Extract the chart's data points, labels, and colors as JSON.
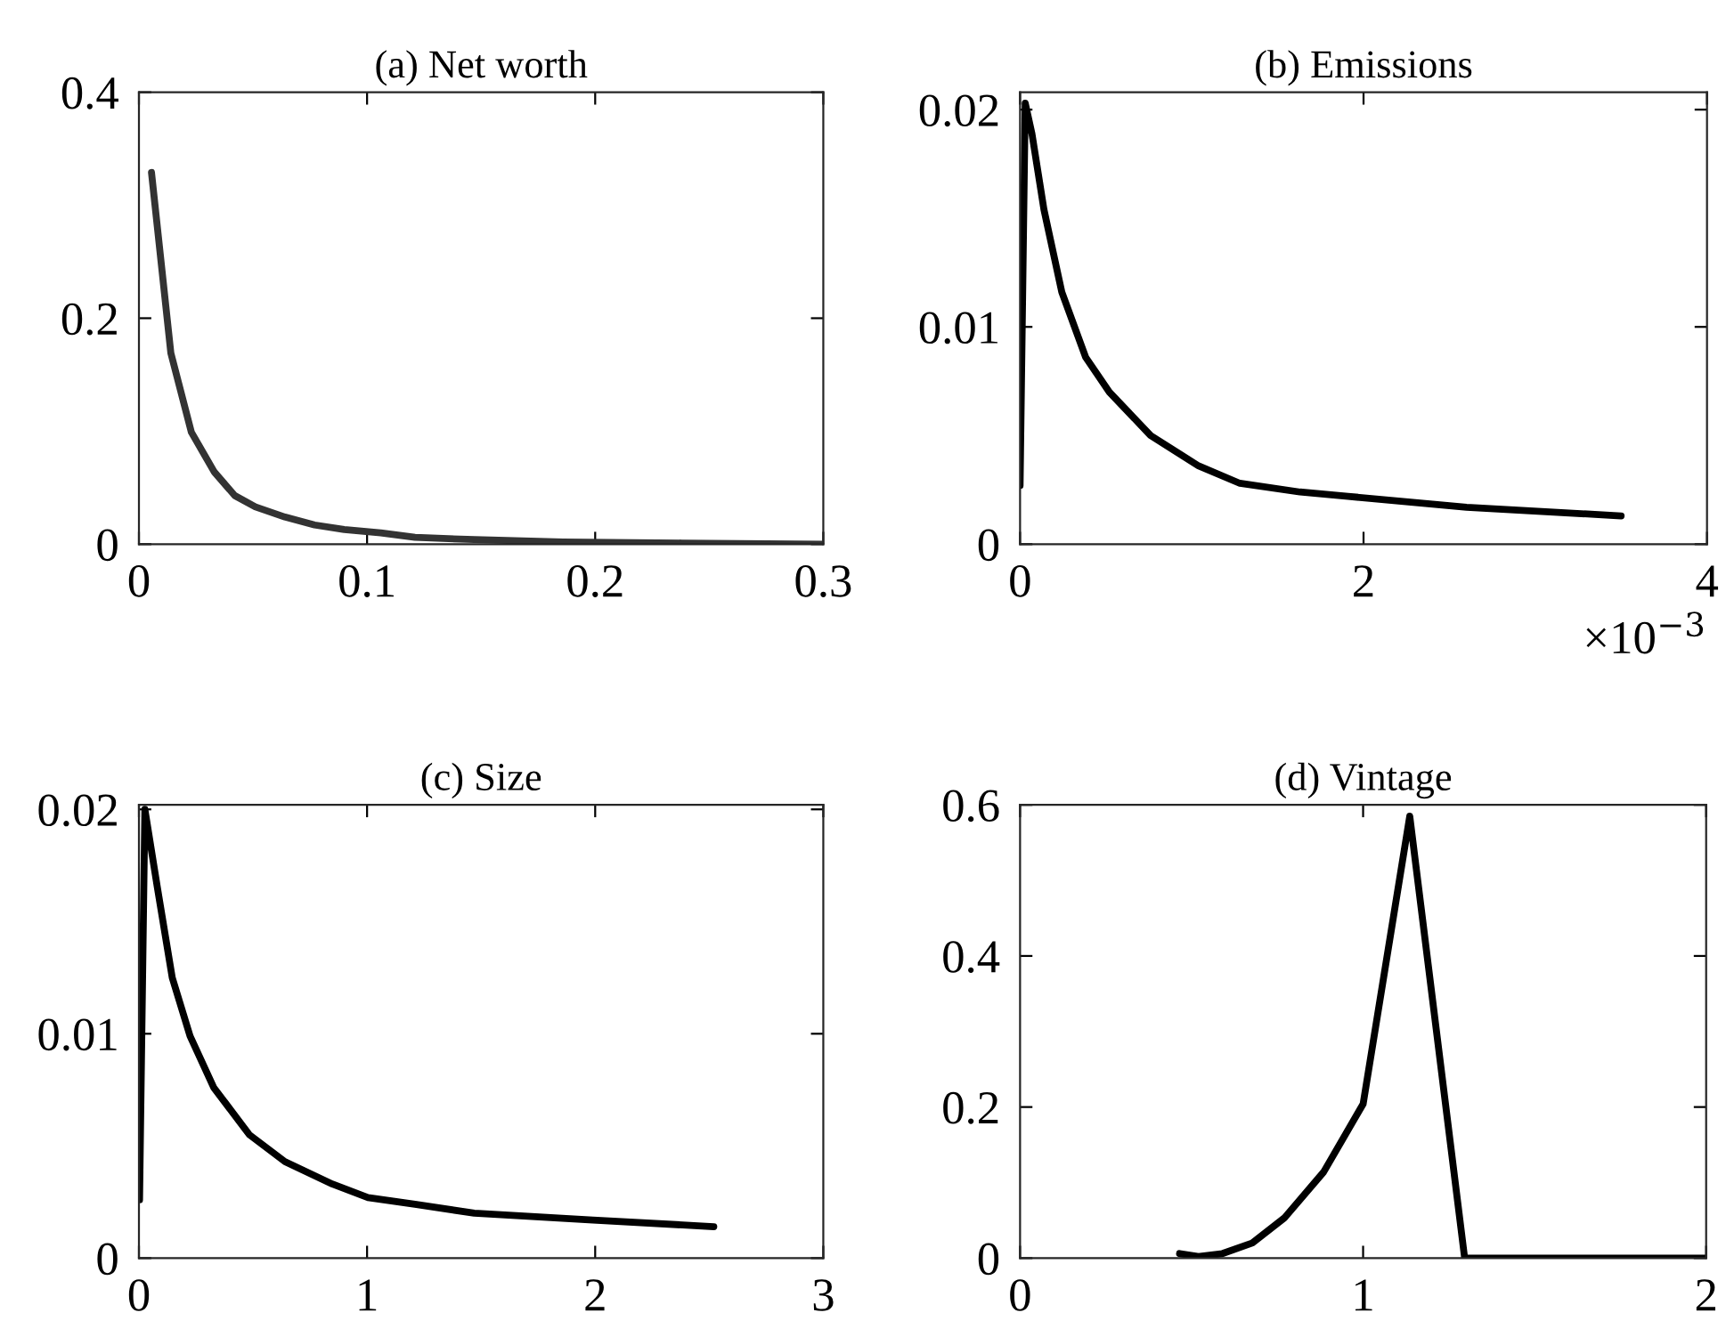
{
  "chart_data": [
    {
      "type": "line",
      "title": "(a) Net worth",
      "xlim": [
        0,
        0.3
      ],
      "ylim": [
        0,
        0.4
      ],
      "xticks": [
        0,
        0.1,
        0.2,
        0.3
      ],
      "yticks": [
        0,
        0.2,
        0.4
      ],
      "series": [
        {
          "color": "#333333",
          "x": [
            0.0055,
            0.014,
            0.023,
            0.033,
            0.042,
            0.051,
            0.064,
            0.077,
            0.09,
            0.106,
            0.121,
            0.147,
            0.186,
            0.238,
            0.3
          ],
          "values": [
            0.329,
            0.169,
            0.099,
            0.064,
            0.043,
            0.033,
            0.024,
            0.017,
            0.013,
            0.01,
            0.006,
            0.004,
            0.002,
            0.001,
            0.0
          ]
        }
      ]
    },
    {
      "type": "line",
      "title": "(b) Emissions",
      "xlim": [
        0,
        4
      ],
      "ylim": [
        0,
        0.0208
      ],
      "xticks": [
        0,
        2,
        4
      ],
      "yticks": [
        0,
        0.01,
        0.02
      ],
      "annotations": [
        "×10$^{−3}$"
      ],
      "series": [
        {
          "color": "#000000",
          "x": [
            0,
            0.03,
            0.069,
            0.139,
            0.243,
            0.382,
            0.52,
            0.76,
            1.04,
            1.28,
            1.63,
            1.91,
            2.6,
            3.5
          ],
          "values": [
            0.0027,
            0.0203,
            0.0189,
            0.0154,
            0.0116,
            0.0086,
            0.007,
            0.005,
            0.0036,
            0.0028,
            0.0024,
            0.0022,
            0.0017,
            0.0013
          ]
        }
      ]
    },
    {
      "type": "line",
      "title": "(c) Size",
      "xlim": [
        0,
        3
      ],
      "ylim": [
        0,
        0.0202
      ],
      "xticks": [
        0,
        1,
        2,
        3
      ],
      "yticks": [
        0,
        0.01,
        0.02
      ],
      "series": [
        {
          "color": "#000000",
          "x": [
            0.0026,
            0.026,
            0.081,
            0.146,
            0.224,
            0.328,
            0.484,
            0.64,
            0.848,
            1.004,
            1.21,
            1.47,
            1.99,
            2.52
          ],
          "values": [
            0.0026,
            0.02,
            0.0165,
            0.0125,
            0.0099,
            0.0076,
            0.0055,
            0.0043,
            0.0033,
            0.0027,
            0.0024,
            0.002,
            0.0017,
            0.0014
          ]
        }
      ]
    },
    {
      "type": "line",
      "title": "(d) Vintage",
      "xlim": [
        0,
        2
      ],
      "ylim": [
        0,
        0.6
      ],
      "xticks": [
        0,
        1,
        2
      ],
      "yticks": [
        0,
        0.2,
        0.4,
        0.6
      ],
      "series": [
        {
          "color": "#000000",
          "x": [
            0.465,
            0.52,
            0.59,
            0.677,
            0.77,
            0.885,
            1.0,
            1.136,
            1.296,
            2.0
          ],
          "values": [
            0.006,
            0.002,
            0.006,
            0.02,
            0.053,
            0.114,
            0.204,
            0.585,
            0.0,
            0.0
          ]
        }
      ]
    }
  ]
}
